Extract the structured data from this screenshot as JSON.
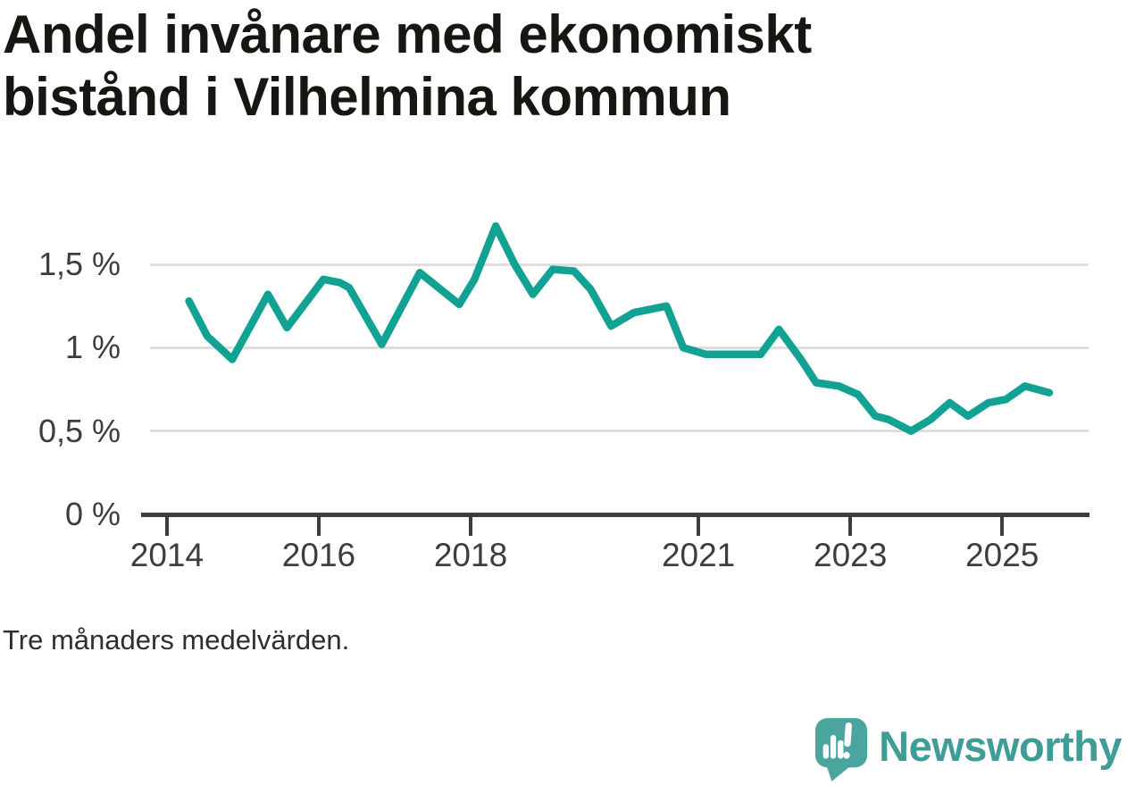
{
  "title": "Andel invånare med ekonomiskt bistånd i Vilhelmina kommun",
  "note": "Tre månaders medelvärden.",
  "brand": {
    "name": "Newsworthy",
    "icon": "newsworthy-speech-bubble-bar-chart-icon",
    "icon_color": "#4ba59e",
    "wordmark_color": "#3f9d97"
  },
  "chart_data": {
    "type": "line",
    "title": "Andel invånare med ekonomiskt bistånd i Vilhelmina kommun",
    "subtitle": "",
    "xlabel": "",
    "ylabel": "",
    "unit": "%",
    "grid": true,
    "legend_position": "none",
    "line_color": "#11a294",
    "axis_color": "#3d3d3d",
    "grid_color": "#dedede",
    "xlim": [
      2013.66,
      2026.15
    ],
    "ylim": [
      0,
      1.8
    ],
    "x_ticks": [
      {
        "value": 2014,
        "label": "2014"
      },
      {
        "value": 2016,
        "label": "2016"
      },
      {
        "value": 2018,
        "label": "2018"
      },
      {
        "value": 2021,
        "label": "2021"
      },
      {
        "value": 2023,
        "label": "2023"
      },
      {
        "value": 2025,
        "label": "2025"
      }
    ],
    "y_ticks": [
      {
        "value": 0,
        "label": "0 %"
      },
      {
        "value": 0.5,
        "label": "0,5 %"
      },
      {
        "value": 1,
        "label": "1 %"
      },
      {
        "value": 1.5,
        "label": "1,5 %"
      }
    ],
    "series": [
      {
        "name": "Andel invånare med ekonomiskt bistånd (%)",
        "points": [
          [
            2014.29,
            1.28
          ],
          [
            2014.53,
            1.07
          ],
          [
            2014.86,
            0.93
          ],
          [
            2015.33,
            1.32
          ],
          [
            2015.58,
            1.12
          ],
          [
            2016.06,
            1.41
          ],
          [
            2016.28,
            1.39
          ],
          [
            2016.4,
            1.36
          ],
          [
            2016.83,
            1.02
          ],
          [
            2017.33,
            1.45
          ],
          [
            2017.55,
            1.37
          ],
          [
            2017.85,
            1.26
          ],
          [
            2018.05,
            1.41
          ],
          [
            2018.33,
            1.73
          ],
          [
            2018.58,
            1.5
          ],
          [
            2018.82,
            1.32
          ],
          [
            2019.08,
            1.47
          ],
          [
            2019.36,
            1.46
          ],
          [
            2019.58,
            1.35
          ],
          [
            2019.85,
            1.13
          ],
          [
            2020.15,
            1.21
          ],
          [
            2020.58,
            1.25
          ],
          [
            2020.8,
            1.0
          ],
          [
            2020.95,
            0.98
          ],
          [
            2021.1,
            0.96
          ],
          [
            2021.82,
            0.96
          ],
          [
            2022.06,
            1.11
          ],
          [
            2022.35,
            0.93
          ],
          [
            2022.55,
            0.79
          ],
          [
            2022.85,
            0.77
          ],
          [
            2023.1,
            0.72
          ],
          [
            2023.33,
            0.59
          ],
          [
            2023.5,
            0.57
          ],
          [
            2023.8,
            0.5
          ],
          [
            2024.06,
            0.57
          ],
          [
            2024.31,
            0.67
          ],
          [
            2024.55,
            0.59
          ],
          [
            2024.82,
            0.67
          ],
          [
            2025.05,
            0.69
          ],
          [
            2025.3,
            0.77
          ],
          [
            2025.62,
            0.73
          ]
        ]
      }
    ]
  }
}
